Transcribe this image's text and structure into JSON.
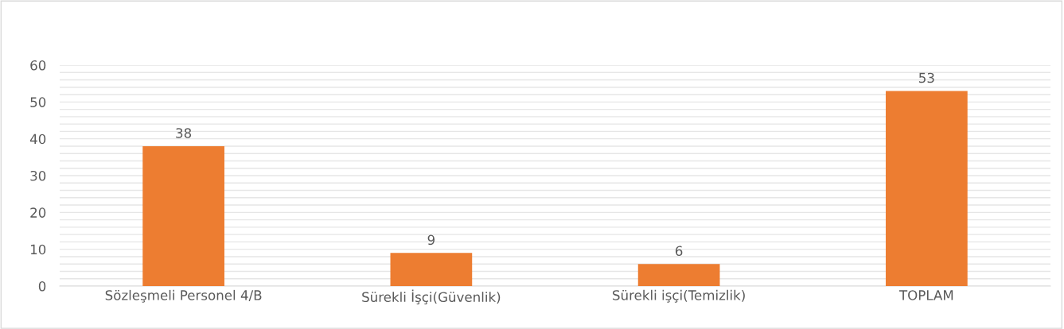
{
  "chart_data": {
    "type": "bar",
    "categories": [
      "Sözleşmeli Personel 4/B",
      "Sürekli İşçi(Güvenlik)",
      "Sürekli işçi(Temizlik)",
      "TOPLAM"
    ],
    "values": [
      38,
      9,
      6,
      53
    ],
    "color": "#ed7d31",
    "data_labels": true,
    "ylim": [
      0,
      60
    ],
    "yticks": [
      0,
      {
        "value": 2,
        "label": null
      },
      {
        "value": 4,
        "label": null
      },
      {
        "value": 6,
        "label": null
      },
      {
        "value": 8,
        "label": null
      },
      10,
      {
        "value": 12,
        "label": null
      },
      {
        "value": 14,
        "label": null
      },
      {
        "value": 16,
        "label": null
      },
      {
        "value": 18,
        "label": null
      },
      20,
      {
        "value": 22,
        "label": null
      },
      {
        "value": 24,
        "label": null
      },
      {
        "value": 26,
        "label": null
      },
      {
        "value": 28,
        "label": null
      },
      30,
      {
        "value": 32,
        "label": null
      },
      {
        "value": 34,
        "label": null
      },
      {
        "value": 36,
        "label": null
      },
      {
        "value": 38,
        "label": null
      },
      40,
      {
        "value": 42,
        "label": null
      },
      {
        "value": 44,
        "label": null
      },
      {
        "value": 46,
        "label": null
      },
      {
        "value": 48,
        "label": null
      },
      50,
      {
        "value": 52,
        "label": null
      },
      {
        "value": 54,
        "label": null
      },
      {
        "value": 56,
        "label": null
      },
      {
        "value": 58,
        "label": null
      },
      60
    ],
    "grid": "y"
  }
}
